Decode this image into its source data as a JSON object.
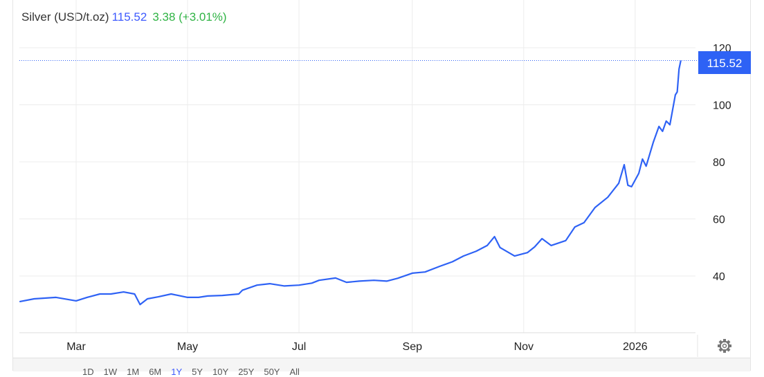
{
  "header": {
    "instrument": "Silver (USD/t.oz)",
    "price": "115.52",
    "change": "3.38 (+3.01%)"
  },
  "colors": {
    "line": "#2e62f5",
    "price_tag": "#2e62f5",
    "change_positive": "#2fb344",
    "price_text": "#3d5afe",
    "grid": "#ececec"
  },
  "footer": {
    "ranges": [
      "1D",
      "1W",
      "1M",
      "6M",
      "1Y",
      "5Y",
      "10Y",
      "25Y",
      "50Y",
      "All"
    ],
    "active_range": "1Y"
  },
  "settings_icon": "gear-icon",
  "chart_data": {
    "type": "line",
    "title": "Silver (USD/t.oz)",
    "last_value_label": "115.52",
    "ylim": [
      20,
      125
    ],
    "y_ticks": [
      40,
      60,
      80,
      100,
      120
    ],
    "x_ticks": [
      {
        "date": "2025-03-01",
        "label": "Mar"
      },
      {
        "date": "2025-05-01",
        "label": "May"
      },
      {
        "date": "2025-07-01",
        "label": "Jul"
      },
      {
        "date": "2025-09-01",
        "label": "Sep"
      },
      {
        "date": "2025-11-01",
        "label": "Nov"
      },
      {
        "date": "2026-01-01",
        "label": "2026"
      }
    ],
    "grid": true,
    "y_axis_position": "right",
    "series": [
      {
        "points": [
          [
            "2025-01-29",
            31.0
          ],
          [
            "2025-02-06",
            32.0
          ],
          [
            "2025-02-18",
            32.5
          ],
          [
            "2025-03-01",
            31.3
          ],
          [
            "2025-03-07",
            32.5
          ],
          [
            "2025-03-14",
            33.7
          ],
          [
            "2025-03-20",
            33.7
          ],
          [
            "2025-03-27",
            34.4
          ],
          [
            "2025-04-02",
            33.7
          ],
          [
            "2025-04-05",
            30.0
          ],
          [
            "2025-04-09",
            32.0
          ],
          [
            "2025-04-15",
            32.7
          ],
          [
            "2025-04-22",
            33.7
          ],
          [
            "2025-05-01",
            32.5
          ],
          [
            "2025-05-07",
            32.5
          ],
          [
            "2025-05-12",
            33.0
          ],
          [
            "2025-05-20",
            33.2
          ],
          [
            "2025-05-29",
            33.7
          ],
          [
            "2025-05-31",
            35.0
          ],
          [
            "2025-06-08",
            36.8
          ],
          [
            "2025-06-15",
            37.3
          ],
          [
            "2025-06-23",
            36.5
          ],
          [
            "2025-07-01",
            36.8
          ],
          [
            "2025-07-08",
            37.5
          ],
          [
            "2025-07-12",
            38.5
          ],
          [
            "2025-07-21",
            39.3
          ],
          [
            "2025-07-27",
            37.8
          ],
          [
            "2025-08-03",
            38.2
          ],
          [
            "2025-08-11",
            38.5
          ],
          [
            "2025-08-18",
            38.2
          ],
          [
            "2025-08-24",
            39.2
          ],
          [
            "2025-09-01",
            41.0
          ],
          [
            "2025-09-08",
            41.4
          ],
          [
            "2025-09-16",
            43.4
          ],
          [
            "2025-09-23",
            45.0
          ],
          [
            "2025-09-29",
            47.0
          ],
          [
            "2025-10-06",
            48.7
          ],
          [
            "2025-10-12",
            50.7
          ],
          [
            "2025-10-16",
            53.8
          ],
          [
            "2025-10-19",
            50.0
          ],
          [
            "2025-10-27",
            47.0
          ],
          [
            "2025-11-03",
            48.2
          ],
          [
            "2025-11-07",
            50.2
          ],
          [
            "2025-11-11",
            53.1
          ],
          [
            "2025-11-16",
            50.7
          ],
          [
            "2025-11-24",
            52.4
          ],
          [
            "2025-11-29",
            57.2
          ],
          [
            "2025-12-04",
            58.7
          ],
          [
            "2025-12-10",
            64.0
          ],
          [
            "2025-12-17",
            67.6
          ],
          [
            "2025-12-23",
            72.5
          ],
          [
            "2025-12-26",
            79.0
          ],
          [
            "2025-12-28",
            71.8
          ],
          [
            "2025-12-30",
            71.3
          ],
          [
            "2026-01-03",
            76.0
          ],
          [
            "2026-01-05",
            81.0
          ],
          [
            "2026-01-07",
            78.5
          ],
          [
            "2026-01-11",
            87.0
          ],
          [
            "2026-01-14",
            92.4
          ],
          [
            "2026-01-16",
            90.7
          ],
          [
            "2026-01-18",
            94.3
          ],
          [
            "2026-01-20",
            93.0
          ],
          [
            "2026-01-23",
            103.5
          ],
          [
            "2026-01-24",
            104.5
          ],
          [
            "2026-01-25",
            112.5
          ],
          [
            "2026-01-26",
            115.52
          ]
        ]
      }
    ]
  }
}
